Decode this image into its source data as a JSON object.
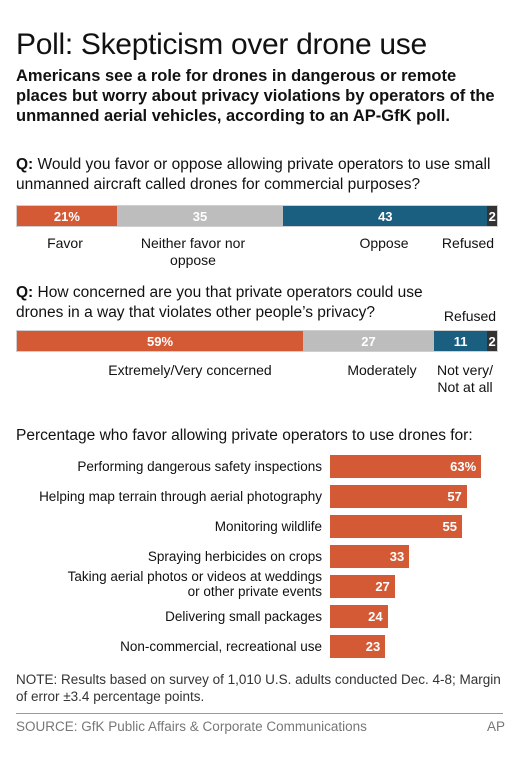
{
  "title": "Poll: Skepticism over drone use",
  "subtitle": "Americans see a role for drones in dangerous or remote places but worry about privacy violations by operators of the unmanned aerial vehicles, according to an AP-GfK poll.",
  "q_prefix": "Q:",
  "colors": {
    "orange": "#d45a36",
    "gray": "#bdbdbd",
    "blue": "#1a5e80",
    "dark": "#333333"
  },
  "chart_data": [
    {
      "type": "bar",
      "stacked": true,
      "orientation": "horizontal",
      "title": "Would you favor or oppose allowing private operators to use small unmanned aircraft called drones for commercial purposes?",
      "series": [
        {
          "name": "Favor",
          "value": 21,
          "label": "21%",
          "color": "#d45a36"
        },
        {
          "name": "Neither favor nor oppose",
          "value": 35,
          "label": "35",
          "color": "#bdbdbd"
        },
        {
          "name": "Oppose",
          "value": 43,
          "label": "43",
          "color": "#1a5e80"
        },
        {
          "name": "Refused",
          "value": 2,
          "label": "2",
          "color": "#333333"
        }
      ]
    },
    {
      "type": "bar",
      "stacked": true,
      "orientation": "horizontal",
      "title": "How concerned are you that private operators could use drones in a way that violates other people’s privacy?",
      "series": [
        {
          "name": "Extremely/Very concerned",
          "value": 59,
          "label": "59%",
          "color": "#d45a36"
        },
        {
          "name": "Moderately",
          "value": 27,
          "label": "27",
          "color": "#bdbdbd"
        },
        {
          "name": "Not very/ Not at all",
          "value": 11,
          "label": "11",
          "color": "#1a5e80"
        },
        {
          "name": "Refused",
          "value": 2,
          "label": "2",
          "color": "#333333"
        }
      ]
    },
    {
      "type": "bar",
      "orientation": "horizontal",
      "title": "Percentage who favor allowing private operators to use drones for:",
      "categories": [
        "Performing dangerous safety inspections",
        "Helping map terrain through aerial photography",
        "Monitoring wildlife",
        "Spraying herbicides on crops",
        "Taking aerial photos or videos at weddings or other private events",
        "Delivering small packages",
        "Non-commercial, recreational use"
      ],
      "category_lines": [
        [
          "Performing dangerous safety inspections"
        ],
        [
          "Helping map terrain through aerial photography"
        ],
        [
          "Monitoring wildlife"
        ],
        [
          "Spraying herbicides on crops"
        ],
        [
          "Taking aerial photos or videos at weddings",
          "or other private events"
        ],
        [
          "Delivering small packages"
        ],
        [
          "Non-commercial, recreational use"
        ]
      ],
      "values": [
        63,
        57,
        55,
        33,
        27,
        24,
        23
      ],
      "value_labels": [
        "63%",
        "57",
        "55",
        "33",
        "27",
        "24",
        "23"
      ],
      "color": "#d45a36"
    }
  ],
  "note": "NOTE: Results based on survey of 1,010 U.S. adults conducted Dec. 4-8; Margin of error ±3.4 percentage points.",
  "source": "SOURCE: GfK Public Affairs & Corporate Communications",
  "credit": "AP"
}
